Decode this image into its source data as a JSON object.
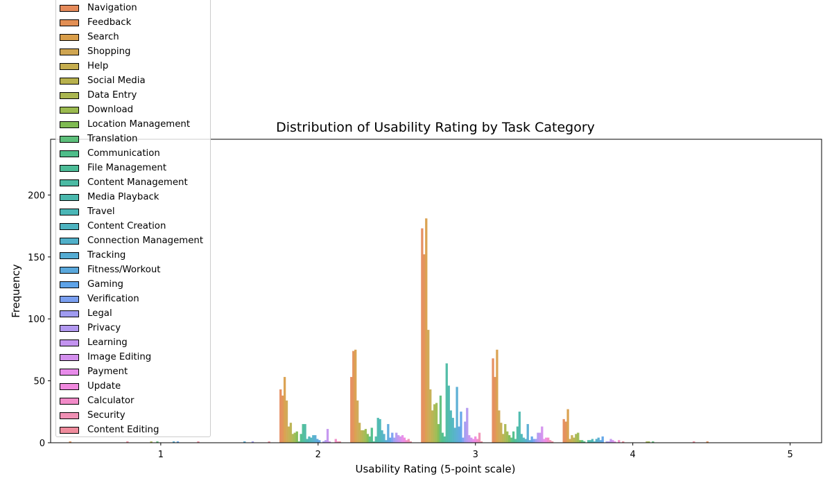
{
  "chart_data": {
    "type": "bar",
    "title": "Distribution of Usability Rating by Task Category",
    "xlabel": "Usability Rating (5-point scale)",
    "ylabel": "Frequency",
    "xlim": [
      0.3,
      5.2
    ],
    "ylim": [
      0,
      245
    ],
    "xticks": [
      "1",
      "2",
      "3",
      "4",
      "5"
    ],
    "yticks": [
      "0",
      "50",
      "100",
      "150",
      "200"
    ],
    "grid": false,
    "legend_position": "upper-left",
    "bin_centers": [
      0.6,
      1.05,
      1.5,
      1.95,
      2.4,
      2.85,
      3.3,
      3.75,
      4.2,
      4.65
    ],
    "series": [
      {
        "name": "Navigation",
        "color": "#e58a5a",
        "values": [
          0,
          0,
          0,
          43,
          53,
          173,
          68,
          19,
          0,
          0
        ]
      },
      {
        "name": "Feedback",
        "color": "#e28f54",
        "values": [
          1,
          0,
          0,
          38,
          74,
          152,
          53,
          17,
          0,
          1
        ]
      },
      {
        "name": "Search",
        "color": "#d99e4a",
        "values": [
          0,
          0,
          0,
          53,
          75,
          181,
          75,
          27,
          0,
          0
        ]
      },
      {
        "name": "Shopping",
        "color": "#cfa551",
        "values": [
          0,
          0,
          0,
          34,
          34,
          91,
          26,
          3,
          0,
          0
        ]
      },
      {
        "name": "Help",
        "color": "#c5ad4e",
        "values": [
          0,
          0,
          0,
          13,
          16,
          43,
          16,
          6,
          0,
          0
        ]
      },
      {
        "name": "Social Media",
        "color": "#b8b14d",
        "values": [
          0,
          0,
          0,
          16,
          10,
          26,
          7,
          4,
          0,
          0
        ]
      },
      {
        "name": "Data Entry",
        "color": "#aab650",
        "values": [
          0,
          1,
          0,
          7,
          10,
          31,
          15,
          7,
          1,
          0
        ]
      },
      {
        "name": "Download",
        "color": "#9bba4f",
        "values": [
          0,
          0,
          0,
          8,
          11,
          32,
          9,
          8,
          1,
          0
        ]
      },
      {
        "name": "Location Management",
        "color": "#7fba52",
        "values": [
          0,
          0,
          0,
          9,
          7,
          15,
          6,
          2,
          0,
          0
        ]
      },
      {
        "name": "Translation",
        "color": "#5dbf7b",
        "values": [
          0,
          1,
          0,
          1,
          5,
          38,
          4,
          2,
          1,
          0
        ]
      },
      {
        "name": "Communication",
        "color": "#4dbd89",
        "values": [
          0,
          0,
          0,
          7,
          12,
          8,
          9,
          1,
          0,
          0
        ]
      },
      {
        "name": "File Management",
        "color": "#4cbc97",
        "values": [
          0,
          0,
          0,
          15,
          1,
          5,
          3,
          0,
          0,
          0
        ]
      },
      {
        "name": "Content Management",
        "color": "#4bbaa3",
        "values": [
          0,
          0,
          0,
          15,
          5,
          64,
          13,
          2,
          0,
          0
        ]
      },
      {
        "name": "Media Playback",
        "color": "#4ab8ad",
        "values": [
          0,
          0,
          0,
          3,
          20,
          46,
          25,
          2,
          0,
          0
        ]
      },
      {
        "name": "Travel",
        "color": "#4ab6b6",
        "values": [
          0,
          0,
          0,
          5,
          19,
          26,
          7,
          3,
          0,
          0
        ]
      },
      {
        "name": "Content Creation",
        "color": "#4db3c0",
        "values": [
          0,
          0,
          0,
          4,
          10,
          20,
          4,
          1,
          0,
          0
        ]
      },
      {
        "name": "Connection Management",
        "color": "#51b0c9",
        "values": [
          0,
          0,
          0,
          6,
          7,
          12,
          3,
          3,
          0,
          0
        ]
      },
      {
        "name": "Tracking",
        "color": "#55acd3",
        "values": [
          0,
          1,
          1,
          6,
          2,
          45,
          15,
          4,
          0,
          0
        ]
      },
      {
        "name": "Fitness/Workout",
        "color": "#5aa8dc",
        "values": [
          0,
          0,
          0,
          3,
          15,
          13,
          2,
          2,
          0,
          0
        ]
      },
      {
        "name": "Gaming",
        "color": "#5ea3e8",
        "values": [
          0,
          1,
          0,
          2,
          4,
          25,
          5,
          5,
          0,
          0
        ]
      },
      {
        "name": "Verification",
        "color": "#7a9ff0",
        "values": [
          0,
          0,
          0,
          0,
          8,
          4,
          3,
          0,
          0,
          0
        ]
      },
      {
        "name": "Legal",
        "color": "#9f9bf0",
        "values": [
          0,
          0,
          1,
          1,
          4,
          17,
          3,
          1,
          0,
          0
        ]
      },
      {
        "name": "Privacy",
        "color": "#b298f0",
        "values": [
          0,
          0,
          0,
          2,
          8,
          28,
          8,
          1,
          0,
          0
        ]
      },
      {
        "name": "Learning",
        "color": "#c393ef",
        "values": [
          0,
          0,
          0,
          11,
          6,
          6,
          8,
          3,
          0,
          0
        ]
      },
      {
        "name": "Image Editing",
        "color": "#d38fed",
        "values": [
          0,
          0,
          0,
          1,
          5,
          4,
          13,
          2,
          0,
          0
        ]
      },
      {
        "name": "Payment",
        "color": "#e78be9",
        "values": [
          0,
          0,
          0,
          0,
          6,
          3,
          3,
          1,
          0,
          0
        ]
      },
      {
        "name": "Update",
        "color": "#f088de",
        "values": [
          0,
          0,
          0,
          0,
          4,
          5,
          4,
          0,
          0,
          0
        ]
      },
      {
        "name": "Calculator",
        "color": "#f28bc8",
        "values": [
          0,
          0,
          0,
          3,
          2,
          3,
          4,
          2,
          0,
          0
        ]
      },
      {
        "name": "Security",
        "color": "#f090b4",
        "values": [
          0,
          0,
          0,
          1,
          3,
          8,
          2,
          0,
          0,
          0
        ]
      },
      {
        "name": "Content Editing",
        "color": "#ef8b9c",
        "values": [
          1,
          1,
          1,
          1,
          1,
          1,
          1,
          1,
          1,
          0
        ]
      }
    ]
  }
}
